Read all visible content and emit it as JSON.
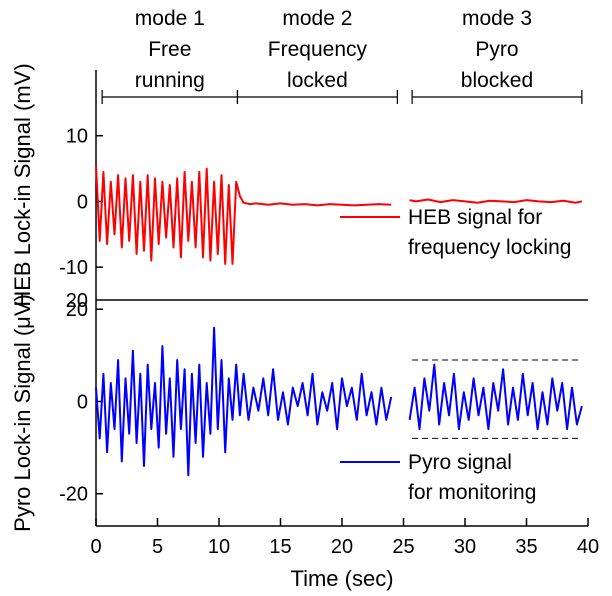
{
  "chart_data": {
    "type": "line",
    "x_axis": {
      "label": "Time (sec)",
      "lim": [
        0,
        40
      ],
      "ticks": [
        "0",
        "5",
        "10",
        "15",
        "20",
        "25",
        "30",
        "35",
        "40"
      ]
    },
    "modes": [
      {
        "lines": [
          "mode 1",
          "Free",
          "running"
        ],
        "range": [
          0.5,
          11.5
        ]
      },
      {
        "lines": [
          "mode 2",
          "Frequency",
          "locked"
        ],
        "range": [
          11.5,
          24.5
        ]
      },
      {
        "lines": [
          "mode 3",
          "Pyro",
          "blocked"
        ],
        "range": [
          25.7,
          39.5
        ]
      }
    ],
    "panels": [
      {
        "ylabel": "HEB Lock-in Signal (mV)",
        "ylim": [
          -15,
          20
        ],
        "yticks": [
          "10",
          "0",
          "-10"
        ],
        "ytick_values": [
          10,
          0,
          -10
        ],
        "top_tick_label": "20",
        "color": "#ff0000",
        "legend": [
          "HEB signal for",
          "frequency locking"
        ],
        "segments": [
          {
            "x": [
              0.0,
              0.3,
              0.6,
              0.9,
              1.2,
              1.5,
              1.8,
              2.1,
              2.4,
              2.7,
              3.0,
              3.3,
              3.6,
              3.9,
              4.2,
              4.5,
              4.8,
              5.1,
              5.4,
              5.7,
              6.0,
              6.3,
              6.6,
              6.9,
              7.2,
              7.5,
              7.8,
              8.1,
              8.4,
              8.7,
              9.0,
              9.3,
              9.6,
              9.9,
              10.2,
              10.5,
              10.8,
              11.1,
              11.4,
              11.7,
              12.0,
              12.5,
              13.0,
              14.0,
              15.0,
              16.0,
              17.0,
              18.0,
              19.0,
              20.0,
              21.0,
              22.0,
              23.0,
              24.0
            ],
            "y": [
              5.5,
              -6.0,
              4.5,
              -6.5,
              3.0,
              -5.0,
              4.0,
              -7.0,
              3.5,
              -6.0,
              4.0,
              -8.0,
              3.0,
              -7.5,
              4.0,
              -9.0,
              3.5,
              -6.5,
              3.0,
              -5.5,
              2.5,
              -7.0,
              3.5,
              -8.5,
              4.5,
              -6.0,
              3.0,
              -7.0,
              4.5,
              -8.5,
              5.0,
              -9.0,
              3.0,
              -8.0,
              4.0,
              -9.5,
              2.5,
              -9.5,
              3.0,
              0.8,
              -0.2,
              -0.4,
              -0.3,
              -0.5,
              -0.3,
              -0.5,
              -0.4,
              -0.6,
              -0.4,
              -0.5,
              -0.6,
              -0.5,
              -0.4,
              -0.5
            ]
          },
          {
            "x": [
              25.5,
              26.0,
              27.0,
              28.0,
              29.0,
              30.0,
              31.0,
              32.0,
              33.0,
              34.0,
              35.0,
              36.0,
              37.0,
              38.0,
              39.0,
              39.5
            ],
            "y": [
              0.2,
              0.0,
              0.3,
              -0.1,
              0.2,
              0.0,
              -0.2,
              0.1,
              0.0,
              -0.1,
              0.2,
              0.0,
              -0.1,
              0.1,
              -0.2,
              0.0
            ]
          }
        ]
      },
      {
        "ylabel": "Pyro Lock-in Signal (μV)",
        "ylim": [
          -27,
          22
        ],
        "yticks": [
          "20",
          "0",
          "-20"
        ],
        "ytick_values": [
          20,
          0,
          -20
        ],
        "color": "#0000ff",
        "legend": [
          "Pyro signal",
          "for monitoring"
        ],
        "reference_lines": [
          9,
          -8
        ],
        "segments": [
          {
            "x": [
              0.0,
              0.3,
              0.6,
              0.9,
              1.2,
              1.5,
              1.8,
              2.1,
              2.4,
              2.7,
              3.0,
              3.3,
              3.6,
              3.9,
              4.2,
              4.5,
              4.8,
              5.1,
              5.4,
              5.7,
              6.0,
              6.3,
              6.6,
              6.9,
              7.2,
              7.5,
              7.8,
              8.1,
              8.4,
              8.7,
              9.0,
              9.3,
              9.6,
              9.9,
              10.2,
              10.5,
              10.8,
              11.1,
              11.4,
              11.7,
              12.0,
              12.4,
              12.8,
              13.2,
              13.6,
              14.0,
              14.4,
              14.8,
              15.2,
              15.6,
              16.0,
              16.4,
              16.8,
              17.2,
              17.6,
              18.0,
              18.4,
              18.8,
              19.2,
              19.6,
              20.0,
              20.4,
              20.8,
              21.2,
              21.6,
              22.0,
              22.4,
              22.8,
              23.2,
              23.6,
              24.0
            ],
            "y": [
              3,
              -8,
              6,
              -11,
              4,
              -6,
              9,
              -13,
              5,
              -7,
              11,
              -9,
              6,
              -14,
              8,
              -6,
              4,
              -10,
              12,
              -7,
              5,
              -12,
              9,
              -6,
              7,
              -16,
              6,
              -9,
              8,
              -12,
              4,
              -7,
              16,
              -6,
              9,
              -11,
              5,
              -4,
              8,
              -3,
              6,
              -4,
              3,
              -2,
              5,
              -3,
              7,
              -4,
              2,
              -5,
              3,
              -1,
              4,
              -3,
              6,
              -5,
              2,
              -2,
              4,
              -6,
              5,
              -1,
              3,
              -4,
              6,
              -3,
              2,
              -5,
              3,
              -4,
              1
            ]
          },
          {
            "x": [
              25.5,
              25.9,
              26.3,
              26.7,
              27.1,
              27.5,
              27.9,
              28.3,
              28.7,
              29.1,
              29.5,
              29.9,
              30.3,
              30.7,
              31.1,
              31.5,
              31.9,
              32.3,
              32.7,
              33.1,
              33.5,
              33.9,
              34.3,
              34.7,
              35.1,
              35.5,
              35.9,
              36.3,
              36.7,
              37.1,
              37.5,
              37.9,
              38.3,
              38.7,
              39.1,
              39.5
            ],
            "y": [
              -4,
              3,
              -6,
              5,
              -2,
              8,
              -5,
              4,
              -3,
              6,
              -6,
              2,
              -4,
              5,
              -3,
              3,
              -6,
              4,
              -2,
              7,
              -5,
              3,
              -4,
              6,
              -3,
              4,
              -6,
              2,
              -5,
              5,
              -2,
              4,
              -6,
              3,
              -5,
              -1
            ]
          }
        ]
      }
    ]
  }
}
